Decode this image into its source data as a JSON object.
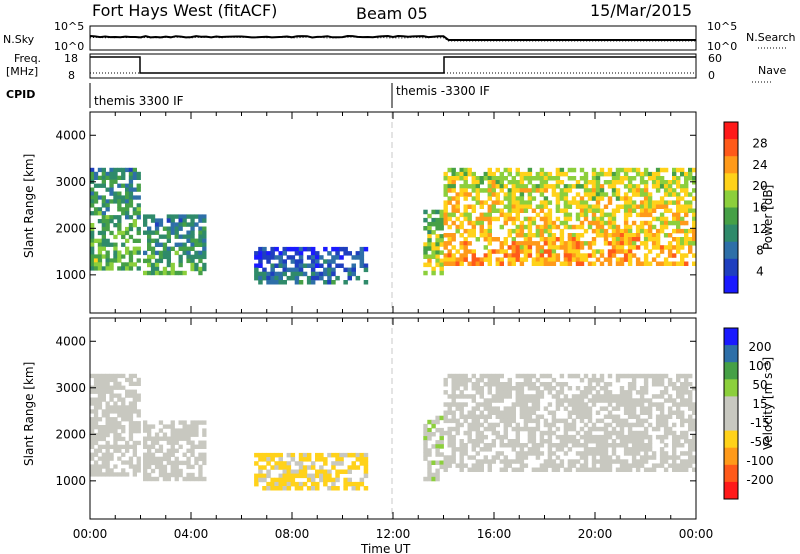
{
  "header": {
    "station": "Fort Hays West (fitACF)",
    "beam": "Beam 05",
    "date": "15/Mar/2015"
  },
  "summary": {
    "left_top_label": "N.Sky",
    "left_top_ticks": [
      "10^5",
      "10^0"
    ],
    "right_top_label": "N.Search",
    "right_top_ticks": [
      "10^5",
      "10^0"
    ],
    "freq_label_1": "Freq.",
    "freq_label_2": "[MHz]",
    "freq_ticks": [
      "18",
      "8"
    ],
    "nave_label": "Nave",
    "nave_ticks": [
      "60",
      "0"
    ],
    "cpid_label": "CPID",
    "cpid_segments": [
      "themis 3300 IF",
      "themis -3300 IF"
    ],
    "cpid_change_time": "12:00"
  },
  "colors": {
    "power_scale": [
      "#1a1aff",
      "#1f3fbf",
      "#2e6fa8",
      "#2f8a6a",
      "#46a046",
      "#8ccf3c",
      "#ffd21a",
      "#ff9a1a",
      "#ff5a1a",
      "#ff1a1a"
    ],
    "velocity_scale": [
      "#ff1a1a",
      "#ff5a1a",
      "#ff9a1a",
      "#ffd21a",
      "#c8c8c0",
      "#c8c8c0",
      "#8ccf3c",
      "#46a046",
      "#2e6fa8",
      "#1a1aff"
    ]
  },
  "chart_data": [
    {
      "type": "heatmap",
      "title": "Power",
      "ylabel": "Slant Range [km]",
      "xlabel": "Time UT",
      "ylim": [
        180,
        4500
      ],
      "yticks": [
        "1000",
        "2000",
        "3000",
        "4000"
      ],
      "xticks": [
        "00:00",
        "04:00",
        "08:00",
        "12:00",
        "16:00",
        "20:00",
        "00:00"
      ],
      "colorbar_label": "Power [dB]",
      "colorbar_ticks": [
        "4",
        "8",
        "12",
        "16",
        "20",
        "24",
        "28"
      ],
      "colorbar_range": [
        0,
        32
      ],
      "regions": [
        {
          "t": [
            0.0,
            2.0
          ],
          "r": [
            1100,
            3300
          ],
          "v": 10
        },
        {
          "t": [
            2.1,
            4.6
          ],
          "r": [
            1000,
            2300
          ],
          "v": 9
        },
        {
          "t": [
            6.5,
            11.0
          ],
          "r": [
            800,
            1600
          ],
          "v": 4
        },
        {
          "t": [
            13.2,
            14.0
          ],
          "r": [
            1000,
            2400
          ],
          "v": 14
        },
        {
          "t": [
            14.0,
            24.0
          ],
          "r": [
            1200,
            3300
          ],
          "v": 18
        }
      ]
    },
    {
      "type": "heatmap",
      "title": "Velocity",
      "ylabel": "Slant Range [km]",
      "xlabel": "Time UT",
      "ylim": [
        180,
        4500
      ],
      "yticks": [
        "1000",
        "2000",
        "3000",
        "4000"
      ],
      "xticks": [
        "00:00",
        "04:00",
        "08:00",
        "12:00",
        "16:00",
        "20:00",
        "00:00"
      ],
      "colorbar_label": "Velocity [m s⁻¹]",
      "colorbar_ticks": [
        "200",
        "100",
        "50",
        "15",
        "-15",
        "-50",
        "-100",
        "-200"
      ],
      "colorbar_range": [
        -250,
        250
      ],
      "regions": [
        {
          "t": [
            0.0,
            2.0
          ],
          "r": [
            1100,
            3300
          ],
          "v": 0
        },
        {
          "t": [
            2.1,
            4.6
          ],
          "r": [
            1000,
            2300
          ],
          "v": 0
        },
        {
          "t": [
            6.5,
            11.0
          ],
          "r": [
            800,
            1600
          ],
          "v": -60
        },
        {
          "t": [
            13.2,
            14.0
          ],
          "r": [
            1000,
            2400
          ],
          "v": 40
        },
        {
          "t": [
            14.0,
            24.0
          ],
          "r": [
            1200,
            3300
          ],
          "v": 0
        }
      ]
    }
  ]
}
